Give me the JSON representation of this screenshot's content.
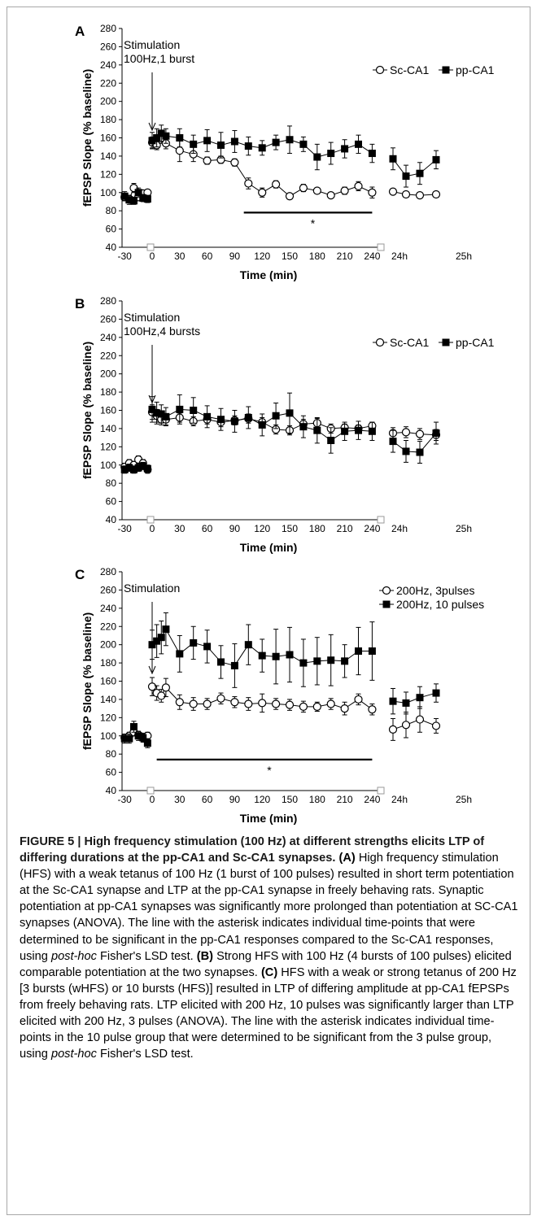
{
  "chart_data": [
    {
      "type": "line",
      "panel_label": "A",
      "ylabel": "fEPSP Slope (% baseline)",
      "xlabel": "Time (min)",
      "ylim": [
        40,
        280
      ],
      "yticks": [
        40,
        60,
        80,
        100,
        120,
        140,
        160,
        180,
        200,
        220,
        240,
        260,
        280
      ],
      "xtick_labels": [
        "-30",
        "0",
        "30",
        "60",
        "90",
        "120",
        "150",
        "180",
        "210",
        "240",
        "24h",
        "25h"
      ],
      "legend_placement": "top-right",
      "annotation": "Stimulation\n100Hz,1 burst",
      "significance": {
        "label": "*",
        "from_min": 100,
        "to_min": 240
      },
      "series": [
        {
          "name": "Sc-CA1",
          "marker": "open-circle",
          "pre": {
            "x": [
              -30,
              -25,
              -20,
              -15,
              -10,
              -5
            ],
            "y": [
              95,
              93,
              105,
              95,
              99,
              100
            ],
            "err": [
              4,
              4,
              5,
              4,
              3,
              3
            ]
          },
          "post": {
            "x": [
              0,
              5,
              10,
              15,
              30,
              45,
              60,
              75,
              90,
              105,
              120,
              135,
              150,
              165,
              180,
              195,
              210,
              225,
              240
            ],
            "y": [
              155,
              152,
              160,
              154,
              146,
              142,
              135,
              136,
              133,
              110,
              100,
              109,
              96,
              105,
              102,
              97,
              102,
              107,
              100
            ],
            "err": [
              6,
              5,
              6,
              6,
              12,
              8,
              4,
              4,
              4,
              6,
              5,
              4,
              3,
              4,
              3,
              3,
              4,
              5,
              6
            ]
          },
          "day": {
            "x": [
              "24h-a",
              "24h-b",
              "24h-c",
              "25h-a"
            ],
            "y": [
              101,
              98,
              97,
              98
            ],
            "err": [
              3,
              3,
              3,
              3
            ]
          }
        },
        {
          "name": "pp-CA1",
          "marker": "filled-square",
          "pre": {
            "x": [
              -30,
              -25,
              -20,
              -15,
              -10,
              -5
            ],
            "y": [
              96,
              92,
              91,
              100,
              94,
              93
            ],
            "err": [
              5,
              5,
              4,
              5,
              4,
              4
            ]
          },
          "post": {
            "x": [
              0,
              5,
              10,
              15,
              30,
              45,
              60,
              75,
              90,
              105,
              120,
              135,
              150,
              165,
              180,
              195,
              210,
              225,
              240
            ],
            "y": [
              157,
              160,
              165,
              162,
              160,
              153,
              157,
              152,
              156,
              151,
              149,
              155,
              158,
              153,
              139,
              143,
              148,
              153,
              143
            ],
            "err": [
              9,
              10,
              9,
              8,
              10,
              10,
              12,
              14,
              12,
              10,
              8,
              8,
              15,
              8,
              14,
              12,
              10,
              10,
              10
            ]
          },
          "day": {
            "x": [
              "24h-a",
              "24h-b",
              "24h-c",
              "25h-a"
            ],
            "y": [
              137,
              118,
              121,
              136
            ],
            "err": [
              12,
              12,
              12,
              10
            ]
          }
        }
      ]
    },
    {
      "type": "line",
      "panel_label": "B",
      "ylabel": "fEPSP Slope (% baseline)",
      "xlabel": "Time (min)",
      "ylim": [
        40,
        280
      ],
      "yticks": [
        40,
        60,
        80,
        100,
        120,
        140,
        160,
        180,
        200,
        220,
        240,
        260,
        280
      ],
      "xtick_labels": [
        "-30",
        "0",
        "30",
        "60",
        "90",
        "120",
        "150",
        "180",
        "210",
        "240",
        "24h",
        "25h"
      ],
      "legend_placement": "top-right",
      "annotation": "Stimulation\n100Hz,4 bursts",
      "series": [
        {
          "name": "Sc-CA1",
          "marker": "open-circle",
          "pre": {
            "x": [
              -30,
              -25,
              -20,
              -15,
              -10,
              -5
            ],
            "y": [
              98,
              102,
              100,
              106,
              102,
              95
            ],
            "err": [
              4,
              4,
              4,
              4,
              4,
              4
            ]
          },
          "post": {
            "x": [
              0,
              5,
              10,
              15,
              30,
              45,
              60,
              75,
              90,
              105,
              120,
              135,
              150,
              165,
              180,
              195,
              210,
              225,
              240
            ],
            "y": [
              158,
              154,
              150,
              150,
              152,
              148,
              150,
              147,
              149,
              151,
              147,
              139,
              138,
              145,
              146,
              140,
              141,
              140,
              143
            ],
            "err": [
              8,
              7,
              6,
              6,
              5,
              5,
              5,
              5,
              5,
              5,
              5,
              5,
              5,
              5,
              5,
              5,
              4,
              4,
              4
            ]
          },
          "day": {
            "x": [
              "24h-a",
              "24h-b",
              "24h-c",
              "25h-a"
            ],
            "y": [
              135,
              136,
              134,
              133
            ],
            "err": [
              6,
              6,
              6,
              6
            ]
          }
        },
        {
          "name": "pp-CA1",
          "marker": "filled-square",
          "pre": {
            "x": [
              -30,
              -25,
              -20,
              -15,
              -10,
              -5
            ],
            "y": [
              95,
              97,
              95,
              97,
              99,
              96
            ],
            "err": [
              4,
              4,
              4,
              4,
              4,
              4
            ]
          },
          "post": {
            "x": [
              0,
              5,
              10,
              15,
              30,
              45,
              60,
              75,
              90,
              105,
              120,
              135,
              150,
              165,
              180,
              195,
              210,
              225,
              240
            ],
            "y": [
              161,
              157,
              156,
              153,
              161,
              160,
              153,
              150,
              148,
              152,
              144,
              154,
              157,
              142,
              138,
              127,
              137,
              138,
              137
            ],
            "err": [
              14,
              12,
              10,
              10,
              16,
              14,
              12,
              12,
              12,
              12,
              12,
              14,
              22,
              12,
              14,
              14,
              10,
              10,
              10
            ]
          },
          "day": {
            "x": [
              "24h-a",
              "24h-b",
              "24h-c",
              "25h-a"
            ],
            "y": [
              126,
              115,
              114,
              135
            ],
            "err": [
              12,
              12,
              12,
              12
            ]
          }
        }
      ]
    },
    {
      "type": "line",
      "panel_label": "C",
      "ylabel": "fEPSP Slope (% baseline)",
      "xlabel": "Time (min)",
      "ylim": [
        40,
        280
      ],
      "yticks": [
        40,
        60,
        80,
        100,
        120,
        140,
        160,
        180,
        200,
        220,
        240,
        260,
        280
      ],
      "xtick_labels": [
        "-30",
        "0",
        "30",
        "60",
        "90",
        "120",
        "150",
        "180",
        "210",
        "240",
        "24h",
        "25h"
      ],
      "legend_placement": "top-right",
      "annotation": "Stimulation",
      "significance": {
        "label": "*",
        "from_min": 5,
        "to_min": 240
      },
      "series": [
        {
          "name": "200Hz, 3pulses",
          "marker": "open-circle",
          "pre": {
            "x": [
              -30,
              -25,
              -20,
              -15,
              -10,
              -5
            ],
            "y": [
              98,
              100,
              104,
              101,
              98,
              100
            ],
            "err": [
              4,
              4,
              4,
              4,
              4,
              4
            ]
          },
          "post": {
            "x": [
              0,
              5,
              10,
              15,
              30,
              45,
              60,
              75,
              90,
              105,
              120,
              135,
              150,
              165,
              180,
              195,
              210,
              225,
              240
            ],
            "y": [
              154,
              147,
              144,
              153,
              137,
              135,
              135,
              141,
              137,
              135,
              136,
              135,
              134,
              132,
              132,
              135,
              130,
              140,
              129
            ],
            "err": [
              10,
              8,
              7,
              10,
              8,
              7,
              6,
              6,
              6,
              7,
              10,
              6,
              6,
              6,
              5,
              6,
              7,
              6,
              6
            ]
          },
          "day": {
            "x": [
              "24h-a",
              "24h-b",
              "24h-c",
              "25h-a"
            ],
            "y": [
              107,
              112,
              118,
              111
            ],
            "err": [
              12,
              14,
              14,
              8
            ]
          }
        },
        {
          "name": "200Hz, 10 pulses",
          "marker": "filled-square",
          "pre": {
            "x": [
              -30,
              -25,
              -20,
              -15,
              -10,
              -5
            ],
            "y": [
              97,
              97,
              110,
              100,
              98,
              92
            ],
            "err": [
              5,
              5,
              6,
              5,
              5,
              5
            ]
          },
          "post": {
            "x": [
              0,
              5,
              10,
              15,
              30,
              45,
              60,
              75,
              90,
              105,
              120,
              135,
              150,
              165,
              180,
              195,
              210,
              225,
              240
            ],
            "y": [
              200,
              204,
              208,
              217,
              190,
              202,
              198,
              181,
              177,
              200,
              188,
              187,
              189,
              180,
              182,
              183,
              182,
              193,
              193
            ],
            "err": [
              16,
              18,
              18,
              18,
              20,
              18,
              18,
              18,
              24,
              22,
              18,
              30,
              30,
              26,
              26,
              28,
              18,
              26,
              32
            ]
          },
          "day": {
            "x": [
              "24h-a",
              "24h-b",
              "24h-c",
              "25h-a"
            ],
            "y": [
              138,
              136,
              142,
              147
            ],
            "err": [
              14,
              12,
              12,
              10
            ]
          }
        }
      ]
    }
  ],
  "caption": {
    "title": "FIGURE 5 | High frequency stimulation (100 Hz) at different strengths elicits LTP of differing durations at the pp-CA1 and Sc-CA1 synapses.",
    "a_label": "(A)",
    "a_text_1": "High frequency stimulation (HFS) with a weak tetanus of 100 Hz (1 burst of 100 pulses) resulted in short term potentiation at the Sc-CA1 synapse and LTP at the pp-CA1 synapse in freely behaving rats. Synaptic potentiation at pp-CA1 synapses was significantly more prolonged than potentiation at SC-CA1 synapses (ANOVA). The line with the asterisk indicates individual time-points that were determined to be significant in the pp-CA1 responses compared to the Sc-CA1 responses, using",
    "a_italic": "post-hoc",
    "a_text_2": "Fisher's LSD test.",
    "b_label": "(B)",
    "b_text": "Strong HFS with 100 Hz (4 bursts of 100 pulses) elicited comparable potentiation at the two synapses.",
    "c_label": "(C)",
    "c_text_1": "HFS with a weak or strong tetanus of 200 Hz [3 bursts (wHFS) or 10 bursts (HFS)] resulted in LTP of differing amplitude at pp-CA1 fEPSPs from freely behaving rats. LTP elicited with 200 Hz, 10 pulses was significantly larger than LTP elicited with 200 Hz, 3 pulses (ANOVA). The line with the asterisk indicates individual time-points in the 10 pulse group that were determined to be significant from the 3 pulse group, using",
    "c_italic": "post-hoc",
    "c_text_2": "Fisher's LSD test."
  }
}
